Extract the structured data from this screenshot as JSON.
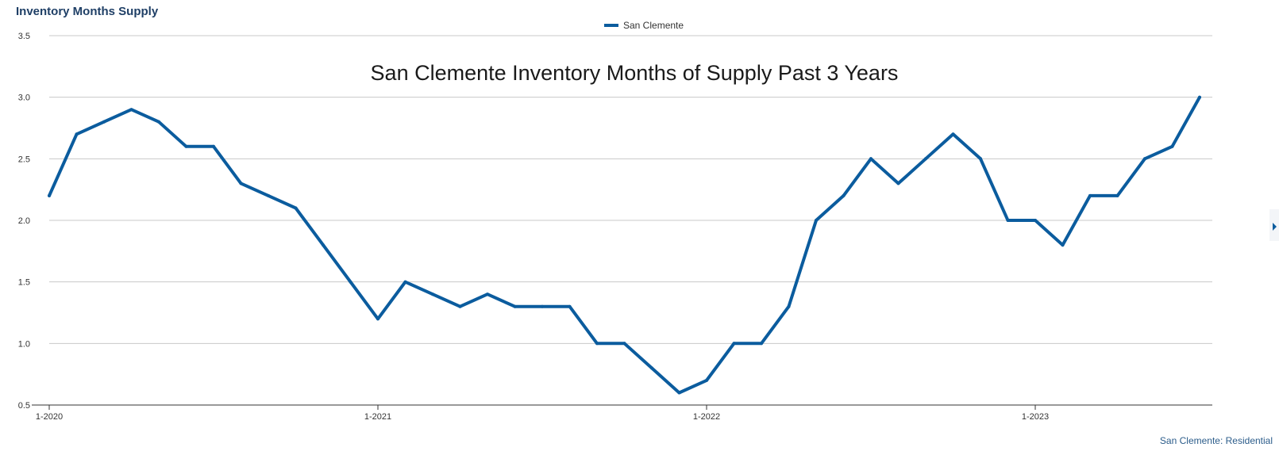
{
  "header": {
    "title": "Inventory Months Supply"
  },
  "overlay": {
    "title": "San Clemente Inventory Months of Supply Past 3 Years"
  },
  "footer": {
    "label": "San Clemente: Residential"
  },
  "colors": {
    "series": "#0b5c9e",
    "header_title": "#1f3f66",
    "footer_text": "#2b5c8a",
    "grid": "#c8c8c8",
    "axis": "#333333",
    "nav_arrow": "#0b5c9e",
    "overlay_title": "#1a1a1a"
  },
  "chart_data": {
    "type": "line",
    "title": "Inventory Months Supply",
    "xlabel": "",
    "ylabel": "",
    "ylim": [
      0.5,
      3.5
    ],
    "yticks": [
      "0.5",
      "1.0",
      "1.5",
      "2.0",
      "2.5",
      "3.0",
      "3.5"
    ],
    "xticks": [
      "1-2020",
      "1-2021",
      "1-2022",
      "1-2023"
    ],
    "grid": true,
    "legend": "top-center",
    "x": [
      "1-2020",
      "2-2020",
      "3-2020",
      "4-2020",
      "5-2020",
      "6-2020",
      "7-2020",
      "8-2020",
      "9-2020",
      "10-2020",
      "11-2020",
      "12-2020",
      "1-2021",
      "2-2021",
      "3-2021",
      "4-2021",
      "5-2021",
      "6-2021",
      "7-2021",
      "8-2021",
      "9-2021",
      "10-2021",
      "11-2021",
      "12-2021",
      "1-2022",
      "2-2022",
      "3-2022",
      "4-2022",
      "5-2022",
      "6-2022",
      "7-2022",
      "8-2022",
      "9-2022",
      "10-2022",
      "11-2022",
      "12-2022",
      "1-2023",
      "2-2023",
      "3-2023",
      "4-2023",
      "5-2023",
      "6-2023",
      "7-2023"
    ],
    "series": [
      {
        "name": "San Clemente",
        "values": [
          2.2,
          2.7,
          2.8,
          2.9,
          2.8,
          2.6,
          2.6,
          2.3,
          2.2,
          2.1,
          1.8,
          1.5,
          1.2,
          1.5,
          1.4,
          1.3,
          1.4,
          1.3,
          1.3,
          1.3,
          1.0,
          1.0,
          0.8,
          0.6,
          0.7,
          1.0,
          1.0,
          1.3,
          2.0,
          2.2,
          2.5,
          2.3,
          2.5,
          2.7,
          2.5,
          2.0,
          2.0,
          1.8,
          2.2,
          2.2,
          2.5,
          2.6,
          3.0
        ]
      }
    ]
  }
}
